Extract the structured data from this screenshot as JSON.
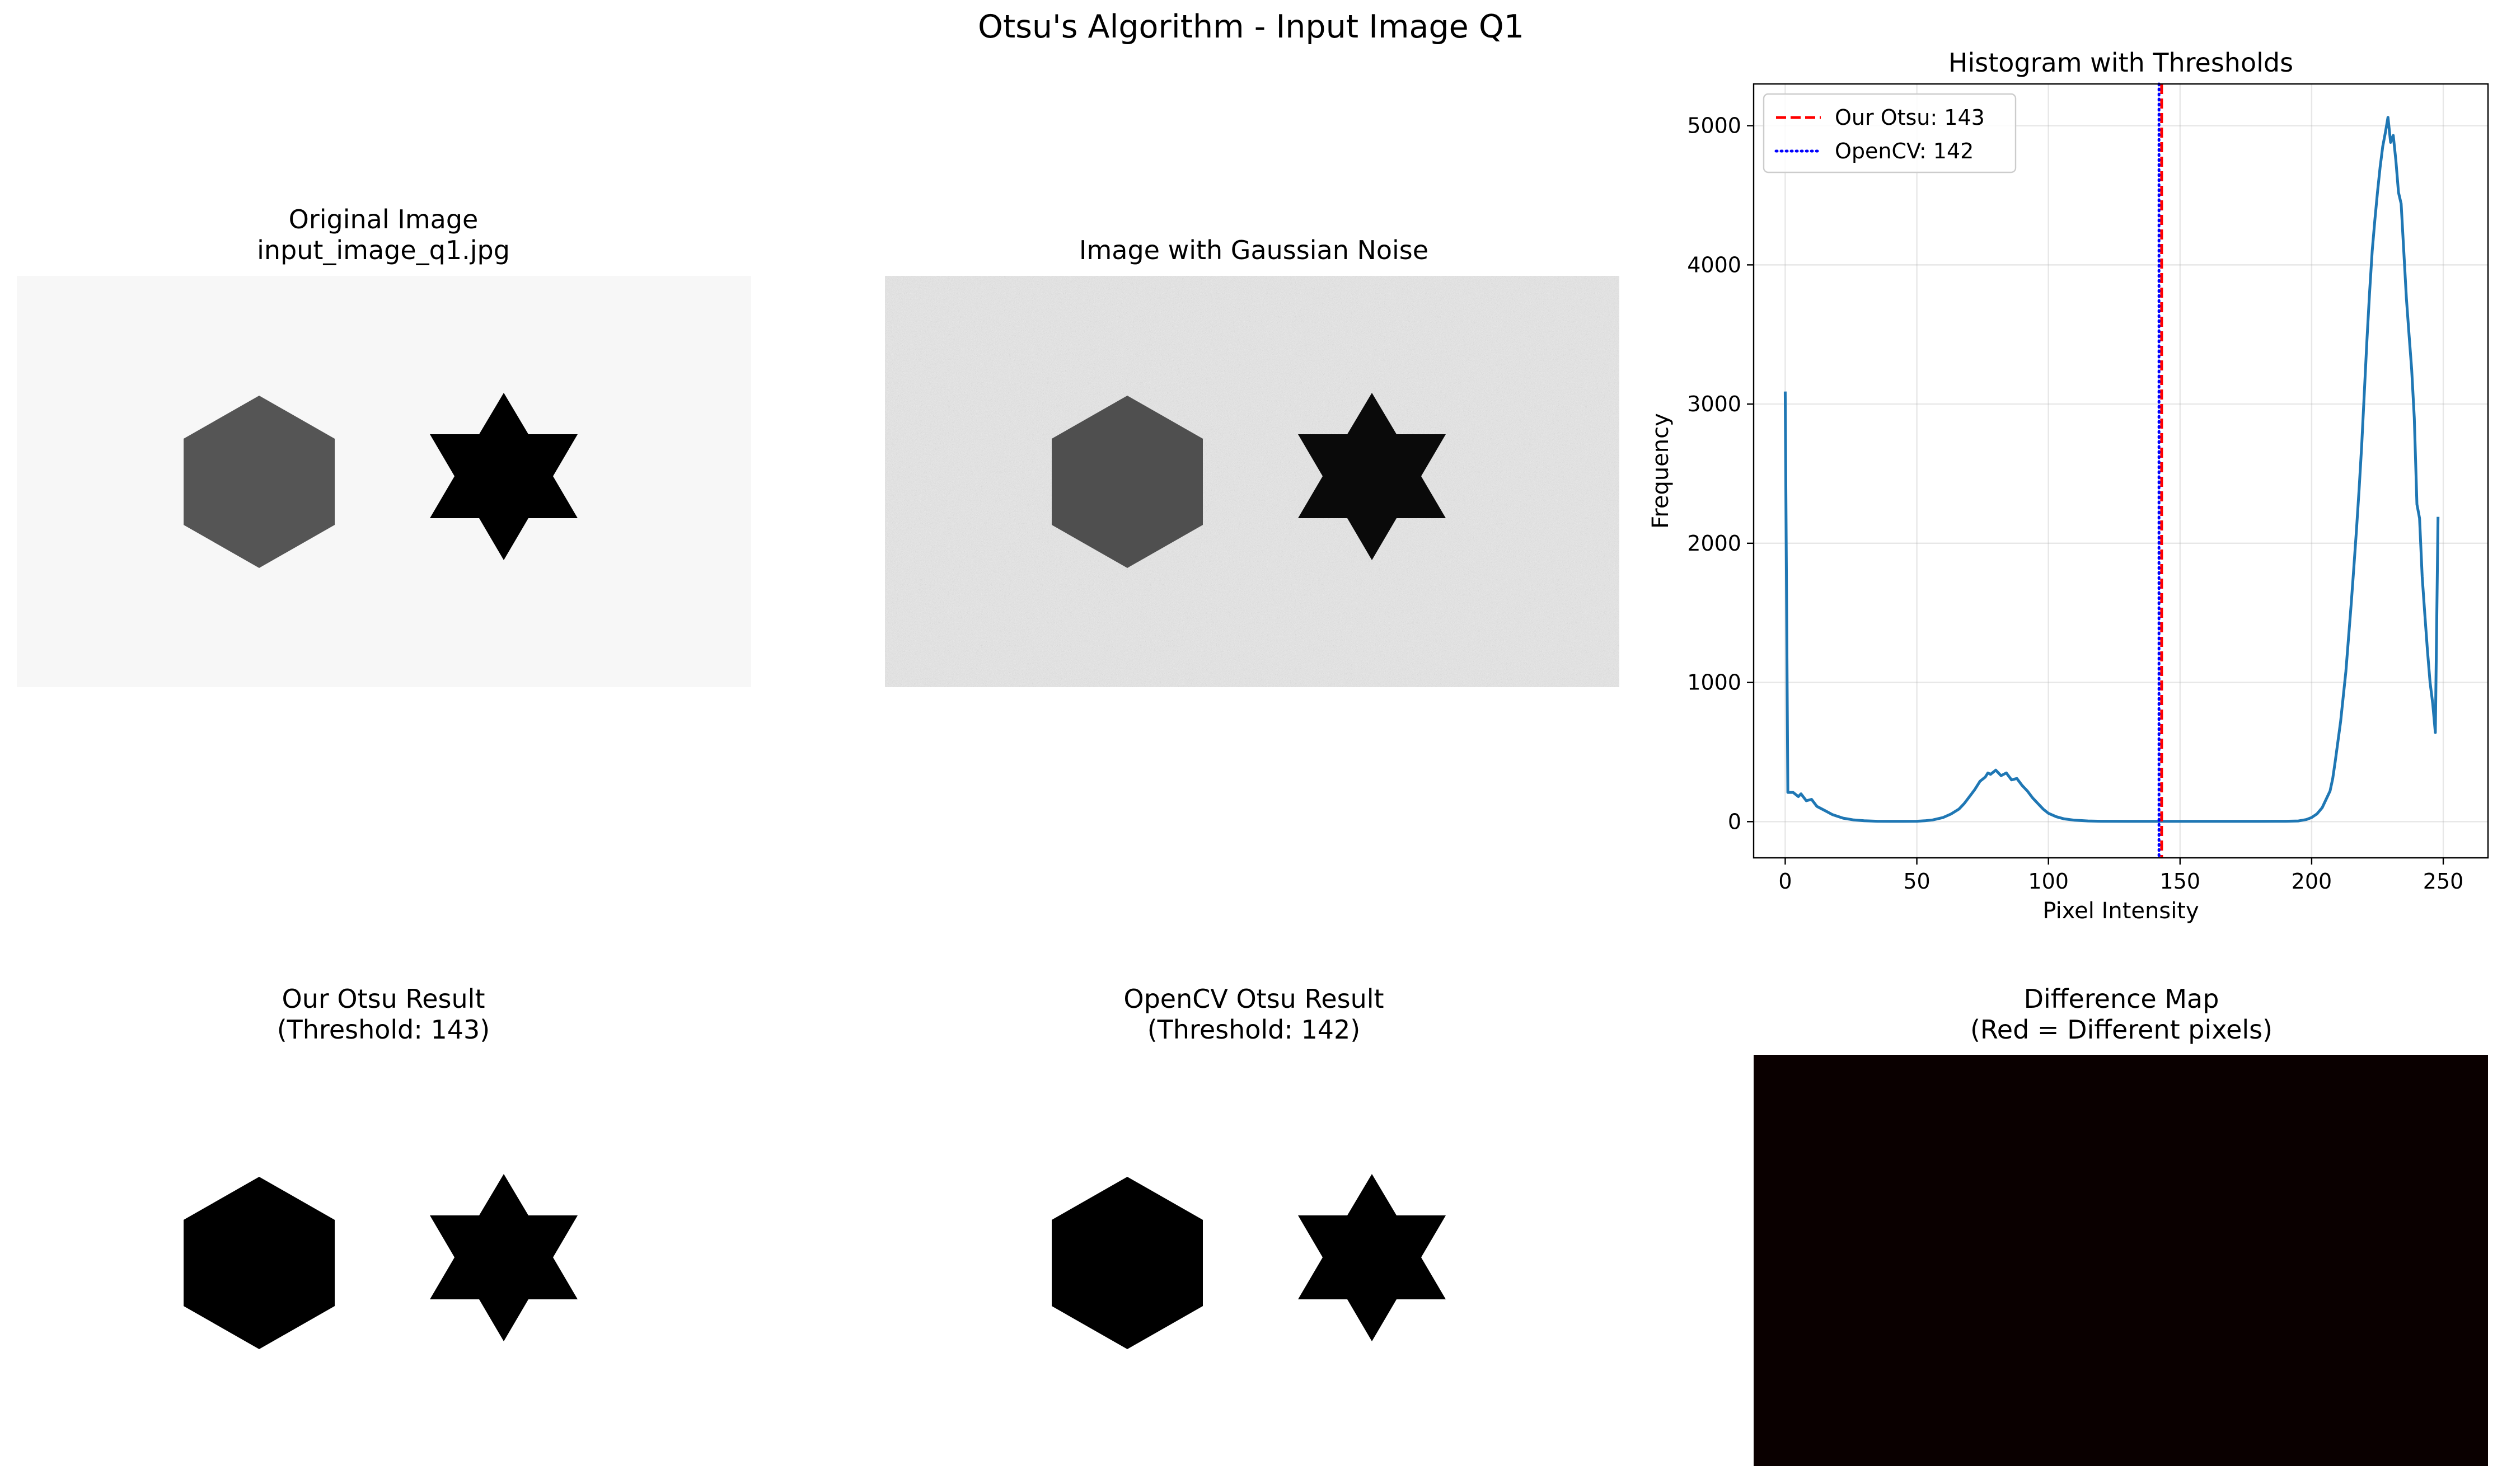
{
  "figure_title": "Otsu's Algorithm - Input Image Q1",
  "panels": {
    "original": {
      "title_line1": "Original Image",
      "title_line2": "input_image_q1.jpg",
      "background": "#f7f7f7",
      "hexagon_color": "#555555",
      "star_color": "#000000"
    },
    "noisy": {
      "title_line1": "Image with Gaussian Noise",
      "background": "#e9e9e9",
      "hexagon_color": "#4f4f4f",
      "star_color": "#0a0a0a"
    },
    "our_result": {
      "title_line1": "Our Otsu Result",
      "title_line2": "(Threshold: 143)",
      "background": "#ffffff",
      "shape_color": "#000000"
    },
    "opencv_result": {
      "title_line1": "OpenCV Otsu Result",
      "title_line2": "(Threshold: 142)",
      "background": "#ffffff",
      "shape_color": "#000000"
    },
    "difference": {
      "title_line1": "Difference Map",
      "title_line2": "(Red = Different pixels)",
      "background": "#0a0000"
    }
  },
  "chart_data": {
    "type": "line",
    "title": "Histogram with Thresholds",
    "xlabel": "Pixel Intensity",
    "ylabel": "Frequency",
    "xlim": [
      -12,
      267
    ],
    "ylim": [
      -260,
      5300
    ],
    "xticks": [
      0,
      50,
      100,
      150,
      200,
      250
    ],
    "yticks": [
      0,
      1000,
      2000,
      3000,
      4000,
      5000
    ],
    "grid": true,
    "legend_position": "upper left",
    "series": [
      {
        "type": "line",
        "color": "#1f77b4",
        "points": [
          [
            0,
            3090
          ],
          [
            1,
            210
          ],
          [
            3,
            210
          ],
          [
            5,
            180
          ],
          [
            6,
            200
          ],
          [
            8,
            150
          ],
          [
            10,
            160
          ],
          [
            12,
            110
          ],
          [
            15,
            80
          ],
          [
            18,
            50
          ],
          [
            22,
            25
          ],
          [
            26,
            12
          ],
          [
            30,
            6
          ],
          [
            35,
            3
          ],
          [
            40,
            2
          ],
          [
            45,
            2
          ],
          [
            50,
            3
          ],
          [
            53,
            6
          ],
          [
            56,
            12
          ],
          [
            60,
            30
          ],
          [
            63,
            55
          ],
          [
            66,
            90
          ],
          [
            68,
            130
          ],
          [
            70,
            180
          ],
          [
            72,
            230
          ],
          [
            74,
            290
          ],
          [
            76,
            320
          ],
          [
            77,
            350
          ],
          [
            78,
            340
          ],
          [
            80,
            370
          ],
          [
            82,
            330
          ],
          [
            84,
            350
          ],
          [
            86,
            300
          ],
          [
            88,
            310
          ],
          [
            90,
            260
          ],
          [
            92,
            220
          ],
          [
            94,
            170
          ],
          [
            96,
            130
          ],
          [
            98,
            90
          ],
          [
            100,
            60
          ],
          [
            103,
            35
          ],
          [
            106,
            20
          ],
          [
            110,
            10
          ],
          [
            115,
            5
          ],
          [
            120,
            3
          ],
          [
            130,
            2
          ],
          [
            140,
            2
          ],
          [
            150,
            2
          ],
          [
            160,
            2
          ],
          [
            170,
            2
          ],
          [
            180,
            2
          ],
          [
            190,
            3
          ],
          [
            195,
            5
          ],
          [
            198,
            15
          ],
          [
            200,
            30
          ],
          [
            202,
            55
          ],
          [
            204,
            100
          ],
          [
            205,
            140
          ],
          [
            207,
            220
          ],
          [
            208,
            310
          ],
          [
            209,
            440
          ],
          [
            210,
            580
          ],
          [
            211,
            720
          ],
          [
            212,
            900
          ],
          [
            213,
            1080
          ],
          [
            214,
            1320
          ],
          [
            215,
            1560
          ],
          [
            216,
            1820
          ],
          [
            217,
            2090
          ],
          [
            218,
            2380
          ],
          [
            219,
            2700
          ],
          [
            220,
            3080
          ],
          [
            221,
            3460
          ],
          [
            222,
            3800
          ],
          [
            223,
            4100
          ],
          [
            224,
            4320
          ],
          [
            225,
            4520
          ],
          [
            226,
            4700
          ],
          [
            227,
            4850
          ],
          [
            228,
            4950
          ],
          [
            229,
            5060
          ],
          [
            230,
            4880
          ],
          [
            231,
            4930
          ],
          [
            232,
            4750
          ],
          [
            233,
            4520
          ],
          [
            234,
            4440
          ],
          [
            235,
            4100
          ],
          [
            236,
            3760
          ],
          [
            237,
            3500
          ],
          [
            238,
            3250
          ],
          [
            239,
            2900
          ],
          [
            240,
            2280
          ],
          [
            241,
            2180
          ],
          [
            242,
            1760
          ],
          [
            243,
            1490
          ],
          [
            244,
            1230
          ],
          [
            245,
            1000
          ],
          [
            246,
            850
          ],
          [
            247,
            640
          ],
          [
            248,
            2190
          ]
        ]
      }
    ],
    "thresholds": [
      {
        "label": "Our Otsu: 143",
        "value": 143,
        "color": "#ff0000",
        "style": "dashed"
      },
      {
        "label": "OpenCV: 142",
        "value": 142,
        "color": "#0000ff",
        "style": "dotted"
      }
    ]
  }
}
